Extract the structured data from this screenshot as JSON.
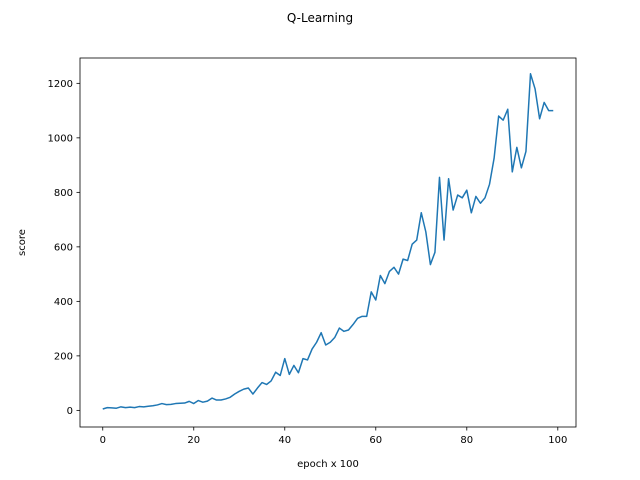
{
  "chart_data": {
    "type": "line",
    "title": "Q-Learning",
    "xlabel": "epoch x 100",
    "ylabel": "score",
    "xlim": [
      -5,
      104
    ],
    "ylim": [
      -61,
      1293
    ],
    "xticks": [
      0,
      20,
      40,
      60,
      80,
      100
    ],
    "yticks": [
      0,
      200,
      400,
      600,
      800,
      1000,
      1200
    ],
    "grid": false,
    "line_color": "#1f77b4",
    "series": [
      {
        "x": [
          0,
          1,
          2,
          3,
          4,
          5,
          6,
          7,
          8,
          9,
          10,
          11,
          12,
          13,
          14,
          15,
          16,
          17,
          18,
          19,
          20,
          21,
          22,
          23,
          24,
          25,
          26,
          27,
          28,
          29,
          30,
          31,
          32,
          33,
          34,
          35,
          36,
          37,
          38,
          39,
          40,
          41,
          42,
          43,
          44,
          45,
          46,
          47,
          48,
          49,
          50,
          51,
          52,
          53,
          54,
          55,
          56,
          57,
          58,
          59,
          60,
          61,
          62,
          63,
          64,
          65,
          66,
          67,
          68,
          69,
          70,
          71,
          72,
          73,
          74,
          75,
          76,
          77,
          78,
          79,
          80,
          81,
          82,
          83,
          84,
          85,
          86,
          87,
          88,
          89,
          90,
          91,
          92,
          93,
          94,
          95,
          96,
          97,
          98,
          99
        ],
        "values": [
          5,
          10,
          9,
          8,
          13,
          10,
          12,
          10,
          14,
          13,
          15,
          17,
          20,
          25,
          21,
          22,
          25,
          26,
          27,
          33,
          25,
          36,
          30,
          34,
          45,
          38,
          38,
          42,
          48,
          60,
          70,
          78,
          82,
          60,
          82,
          102,
          95,
          108,
          140,
          128,
          190,
          132,
          165,
          138,
          190,
          185,
          225,
          250,
          285,
          240,
          250,
          268,
          302,
          290,
          295,
          315,
          338,
          345,
          345,
          435,
          405,
          495,
          465,
          510,
          525,
          500,
          555,
          550,
          610,
          625,
          725,
          655,
          535,
          580,
          855,
          625,
          850,
          735,
          790,
          780,
          808,
          725,
          785,
          760,
          780,
          830,
          925,
          1080,
          1065,
          1105,
          875,
          965,
          890,
          950,
          1235,
          1180,
          1070,
          1130,
          1100,
          1100
        ]
      }
    ]
  }
}
